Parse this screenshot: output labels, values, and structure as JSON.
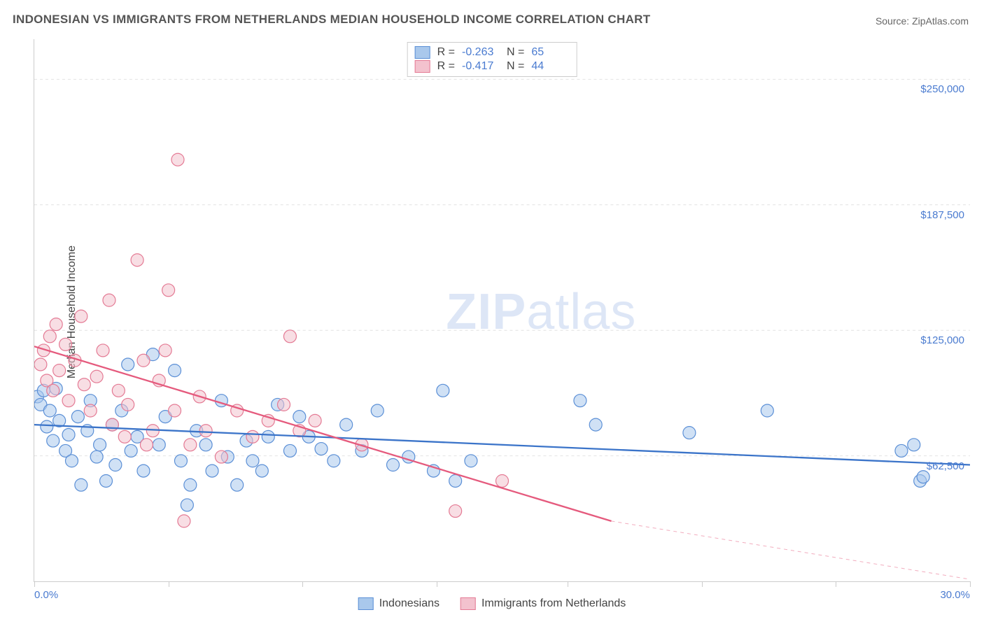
{
  "title": "INDONESIAN VS IMMIGRANTS FROM NETHERLANDS MEDIAN HOUSEHOLD INCOME CORRELATION CHART",
  "source_label": "Source: ",
  "source_name": "ZipAtlas.com",
  "y_axis_label": "Median Household Income",
  "watermark": {
    "zip": "ZIP",
    "atlas": "atlas"
  },
  "chart": {
    "type": "scatter",
    "background_color": "#ffffff",
    "grid_color": "#e2e2e2",
    "axis_color": "#cccccc",
    "label_color": "#4a7bd0",
    "xlim": [
      0,
      30
    ],
    "ylim": [
      0,
      270000
    ],
    "x_ticks_pct": [
      0,
      4.3,
      8.6,
      12.9,
      17.1,
      21.4,
      25.7,
      30
    ],
    "x_tick_labels": {
      "0": "0.0%",
      "30": "30.0%"
    },
    "y_gridlines": [
      62500,
      125000,
      187500,
      250000
    ],
    "y_tick_labels": {
      "62500": "$62,500",
      "125000": "$125,000",
      "187500": "$187,500",
      "250000": "$250,000"
    },
    "marker_radius": 9,
    "marker_opacity": 0.55,
    "line_width": 2.3,
    "series": [
      {
        "name": "Indonesians",
        "color_fill": "#a9c8ec",
        "color_stroke": "#5b8fd6",
        "line_color": "#3b74c9",
        "R": "-0.263",
        "N": "65",
        "regression": {
          "x1": 0,
          "y1": 78000,
          "x2": 30,
          "y2": 58000
        },
        "points": [
          [
            0.1,
            92000
          ],
          [
            0.2,
            88000
          ],
          [
            0.3,
            95000
          ],
          [
            0.4,
            77000
          ],
          [
            0.5,
            85000
          ],
          [
            0.6,
            70000
          ],
          [
            0.7,
            96000
          ],
          [
            0.8,
            80000
          ],
          [
            1.0,
            65000
          ],
          [
            1.1,
            73000
          ],
          [
            1.2,
            60000
          ],
          [
            1.4,
            82000
          ],
          [
            1.5,
            48000
          ],
          [
            1.7,
            75000
          ],
          [
            1.8,
            90000
          ],
          [
            2.0,
            62000
          ],
          [
            2.1,
            68000
          ],
          [
            2.3,
            50000
          ],
          [
            2.5,
            78000
          ],
          [
            2.6,
            58000
          ],
          [
            2.8,
            85000
          ],
          [
            3.0,
            108000
          ],
          [
            3.1,
            65000
          ],
          [
            3.3,
            72000
          ],
          [
            3.5,
            55000
          ],
          [
            3.8,
            113000
          ],
          [
            4.0,
            68000
          ],
          [
            4.2,
            82000
          ],
          [
            4.5,
            105000
          ],
          [
            4.7,
            60000
          ],
          [
            4.9,
            38000
          ],
          [
            5.0,
            48000
          ],
          [
            5.2,
            75000
          ],
          [
            5.5,
            68000
          ],
          [
            5.7,
            55000
          ],
          [
            6.0,
            90000
          ],
          [
            6.2,
            62000
          ],
          [
            6.5,
            48000
          ],
          [
            6.8,
            70000
          ],
          [
            7.0,
            60000
          ],
          [
            7.3,
            55000
          ],
          [
            7.5,
            72000
          ],
          [
            7.8,
            88000
          ],
          [
            8.2,
            65000
          ],
          [
            8.5,
            82000
          ],
          [
            8.8,
            72000
          ],
          [
            9.2,
            66000
          ],
          [
            9.6,
            60000
          ],
          [
            10.0,
            78000
          ],
          [
            10.5,
            65000
          ],
          [
            11.0,
            85000
          ],
          [
            11.5,
            58000
          ],
          [
            12.0,
            62000
          ],
          [
            12.8,
            55000
          ],
          [
            13.1,
            95000
          ],
          [
            13.5,
            50000
          ],
          [
            14.0,
            60000
          ],
          [
            17.5,
            90000
          ],
          [
            18.0,
            78000
          ],
          [
            21.0,
            74000
          ],
          [
            23.5,
            85000
          ],
          [
            27.8,
            65000
          ],
          [
            28.2,
            68000
          ],
          [
            28.4,
            50000
          ],
          [
            28.5,
            52000
          ]
        ]
      },
      {
        "name": "Immigrants from Netherlands",
        "color_fill": "#f3c2ce",
        "color_stroke": "#e47a94",
        "line_color": "#e55a7d",
        "R": "-0.417",
        "N": "44",
        "regression": {
          "x1": 0,
          "y1": 117000,
          "x2": 18.5,
          "y2": 30000
        },
        "regression_dash": {
          "x1": 18.5,
          "y1": 30000,
          "x2": 30,
          "y2": -24000
        },
        "points": [
          [
            0.2,
            108000
          ],
          [
            0.3,
            115000
          ],
          [
            0.4,
            100000
          ],
          [
            0.5,
            122000
          ],
          [
            0.6,
            95000
          ],
          [
            0.7,
            128000
          ],
          [
            0.8,
            105000
          ],
          [
            1.0,
            118000
          ],
          [
            1.1,
            90000
          ],
          [
            1.3,
            110000
          ],
          [
            1.5,
            132000
          ],
          [
            1.6,
            98000
          ],
          [
            1.8,
            85000
          ],
          [
            2.0,
            102000
          ],
          [
            2.2,
            115000
          ],
          [
            2.4,
            140000
          ],
          [
            2.5,
            78000
          ],
          [
            2.7,
            95000
          ],
          [
            2.9,
            72000
          ],
          [
            3.0,
            88000
          ],
          [
            3.3,
            160000
          ],
          [
            3.5,
            110000
          ],
          [
            3.6,
            68000
          ],
          [
            3.8,
            75000
          ],
          [
            4.0,
            100000
          ],
          [
            4.2,
            115000
          ],
          [
            4.3,
            145000
          ],
          [
            4.5,
            85000
          ],
          [
            4.6,
            210000
          ],
          [
            4.8,
            30000
          ],
          [
            5.0,
            68000
          ],
          [
            5.3,
            92000
          ],
          [
            5.5,
            75000
          ],
          [
            6.0,
            62000
          ],
          [
            6.5,
            85000
          ],
          [
            7.0,
            72000
          ],
          [
            7.5,
            80000
          ],
          [
            8.0,
            88000
          ],
          [
            8.2,
            122000
          ],
          [
            8.5,
            75000
          ],
          [
            9.0,
            80000
          ],
          [
            10.5,
            68000
          ],
          [
            13.5,
            35000
          ],
          [
            15.0,
            50000
          ]
        ]
      }
    ]
  },
  "legend_bottom": [
    {
      "label": "Indonesians",
      "fill": "#a9c8ec",
      "stroke": "#5b8fd6"
    },
    {
      "label": "Immigrants from Netherlands",
      "fill": "#f3c2ce",
      "stroke": "#e47a94"
    }
  ]
}
